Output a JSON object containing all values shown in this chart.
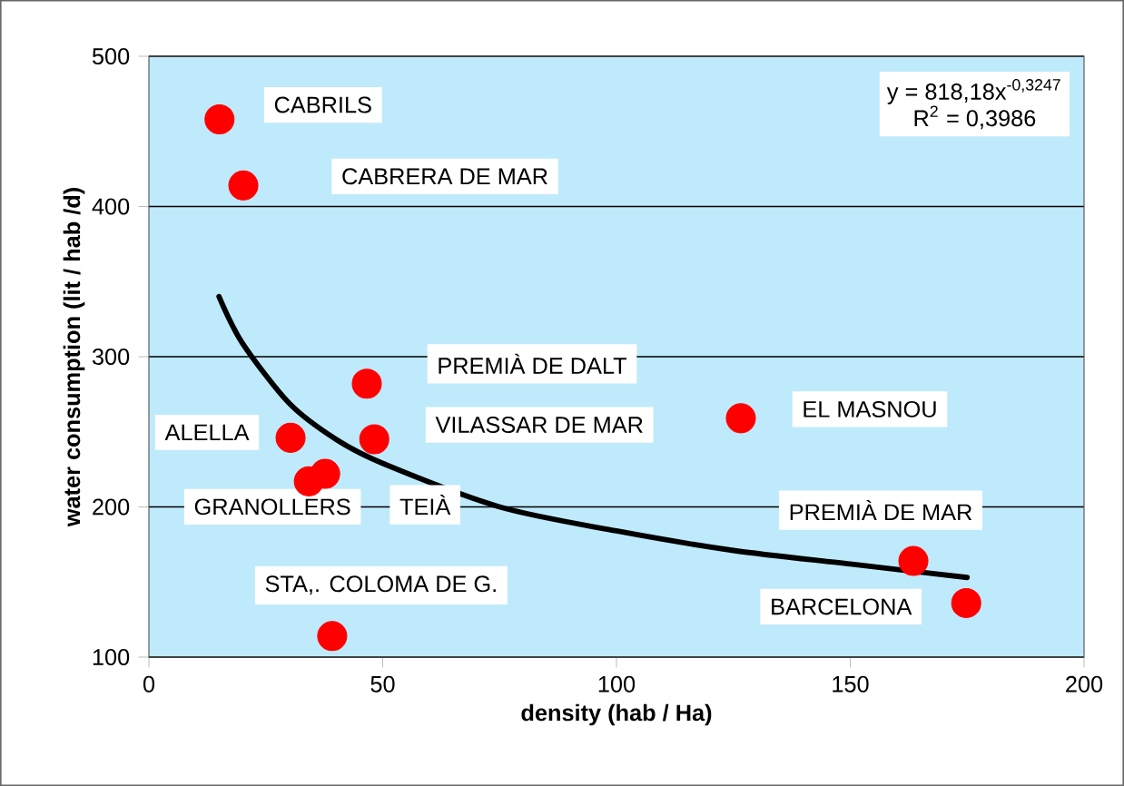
{
  "chart_data": {
    "type": "scatter",
    "xlabel": "density (hab / Ha)",
    "ylabel": "water consumption (lit / hab /d)",
    "xlim": [
      0,
      200
    ],
    "ylim": [
      100,
      500
    ],
    "xticks": [
      0,
      50,
      100,
      150,
      200
    ],
    "yticks": [
      100,
      200,
      300,
      400,
      500
    ],
    "grid": "y",
    "series": [
      {
        "color": "#ff0000",
        "x": [
          15.1,
          20.2,
          46.6,
          48.2,
          30.3,
          34.2,
          37.7,
          39.2,
          126.6,
          163.5,
          174.8
        ],
        "values": [
          458,
          414,
          282,
          245,
          246,
          217,
          222,
          114,
          259,
          164,
          136
        ]
      },
      {
        "type": "line",
        "color": "#000000",
        "x": [
          15,
          20,
          30,
          40,
          50,
          75,
          100,
          125,
          150,
          175
        ],
        "values": [
          340,
          309,
          269,
          245,
          229,
          200,
          184,
          171,
          162,
          153
        ]
      }
    ],
    "annotations": [
      "CABRILS",
      "CABRERA DE MAR",
      "PREMIÀ DE DALT",
      "VILASSAR DE MAR",
      "ALELLA",
      "GRANOLLERS",
      "TEIÀ",
      "STA,. COLOMA DE G.",
      "EL MASNOU",
      "PREMIÀ DE MAR",
      "BARCELONA",
      "y = 818,18x$^{-0,3247}$",
      "R$^{2}$ = 0,3986"
    ]
  }
}
